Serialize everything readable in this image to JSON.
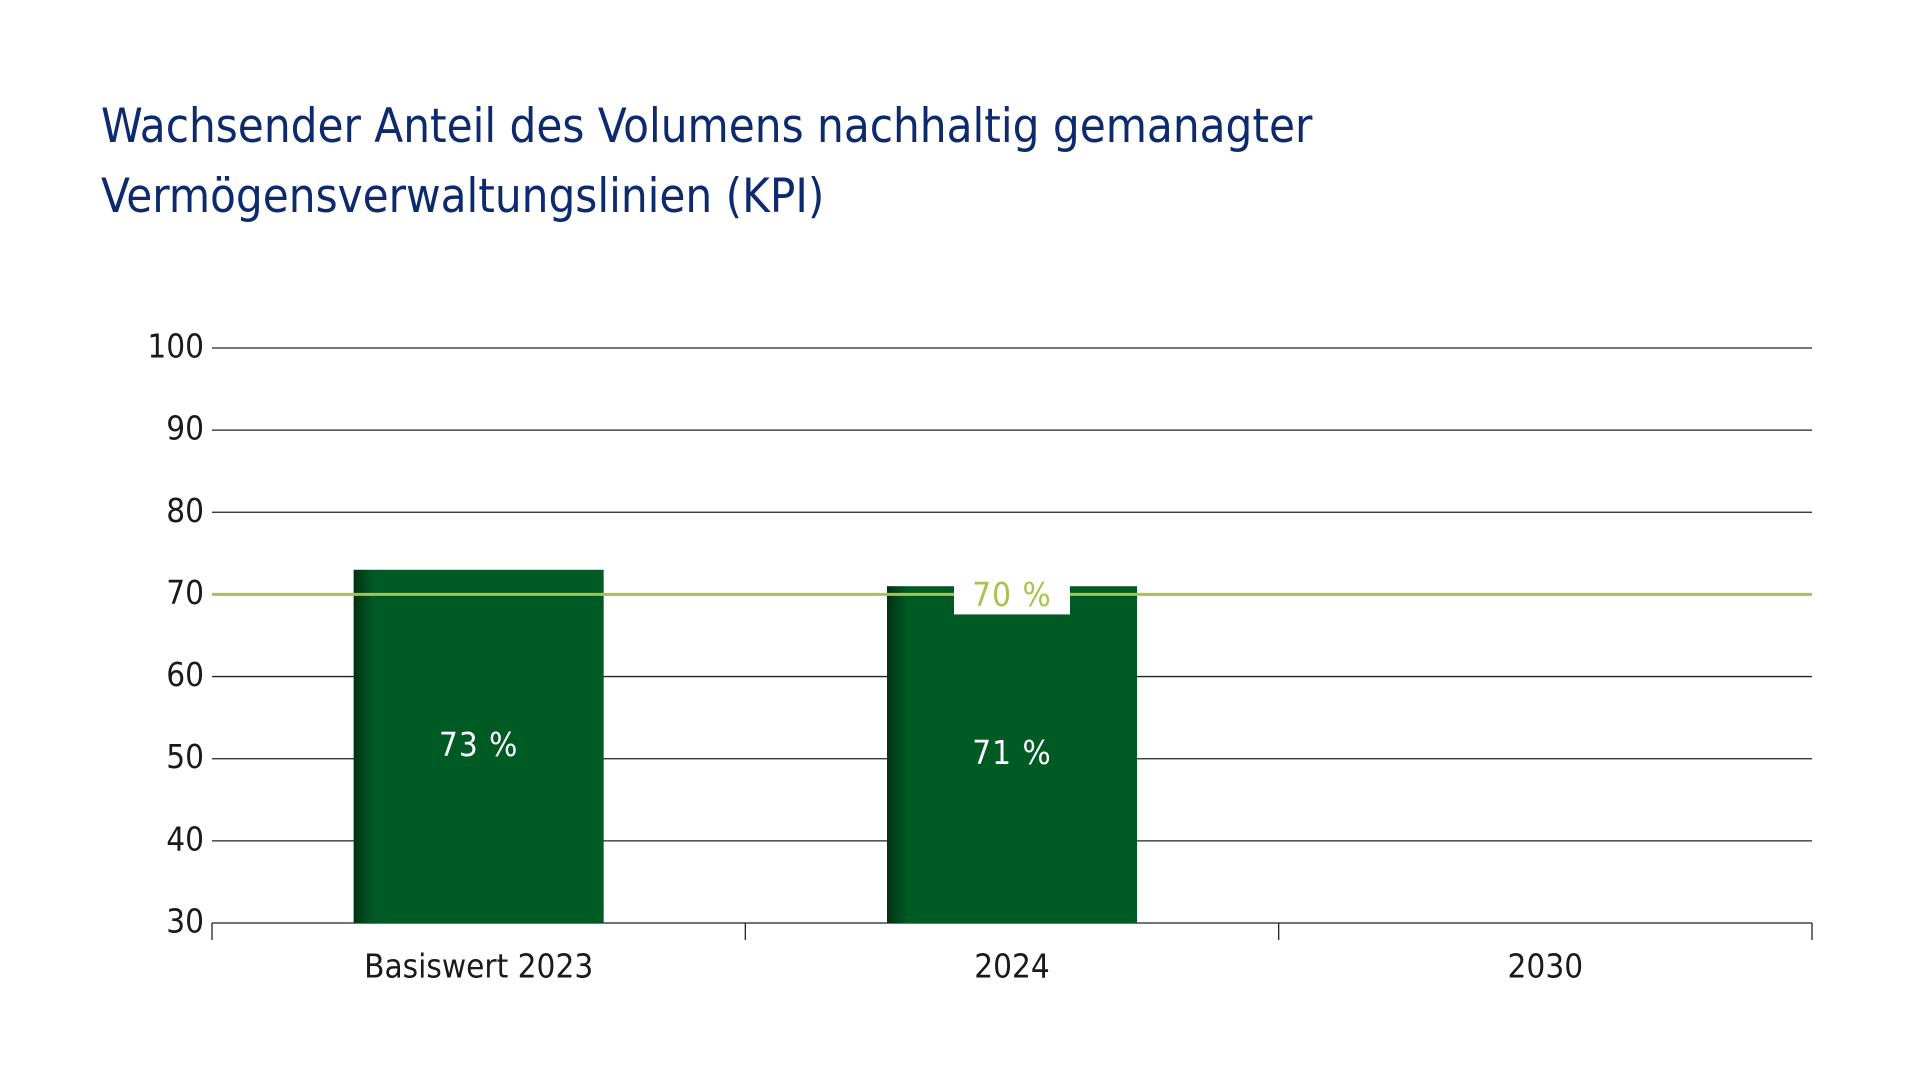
{
  "chart_data": {
    "type": "bar",
    "title": [
      "Wachsender Anteil des Volumens nachhaltig gemanagter",
      "Vermögensverwaltungslinien (KPI)"
    ],
    "categories": [
      "Basiswert 2023",
      "2024",
      "2030"
    ],
    "values": [
      73,
      71,
      null
    ],
    "value_labels": [
      "73 %",
      "71 %",
      null
    ],
    "color": "#005a23",
    "ylim": [
      30,
      100
    ],
    "yticks": [
      30,
      40,
      50,
      60,
      70,
      80,
      90,
      100
    ],
    "grid": true,
    "target": {
      "value": 70,
      "label": "70 %",
      "color": "#a8c34a"
    }
  }
}
